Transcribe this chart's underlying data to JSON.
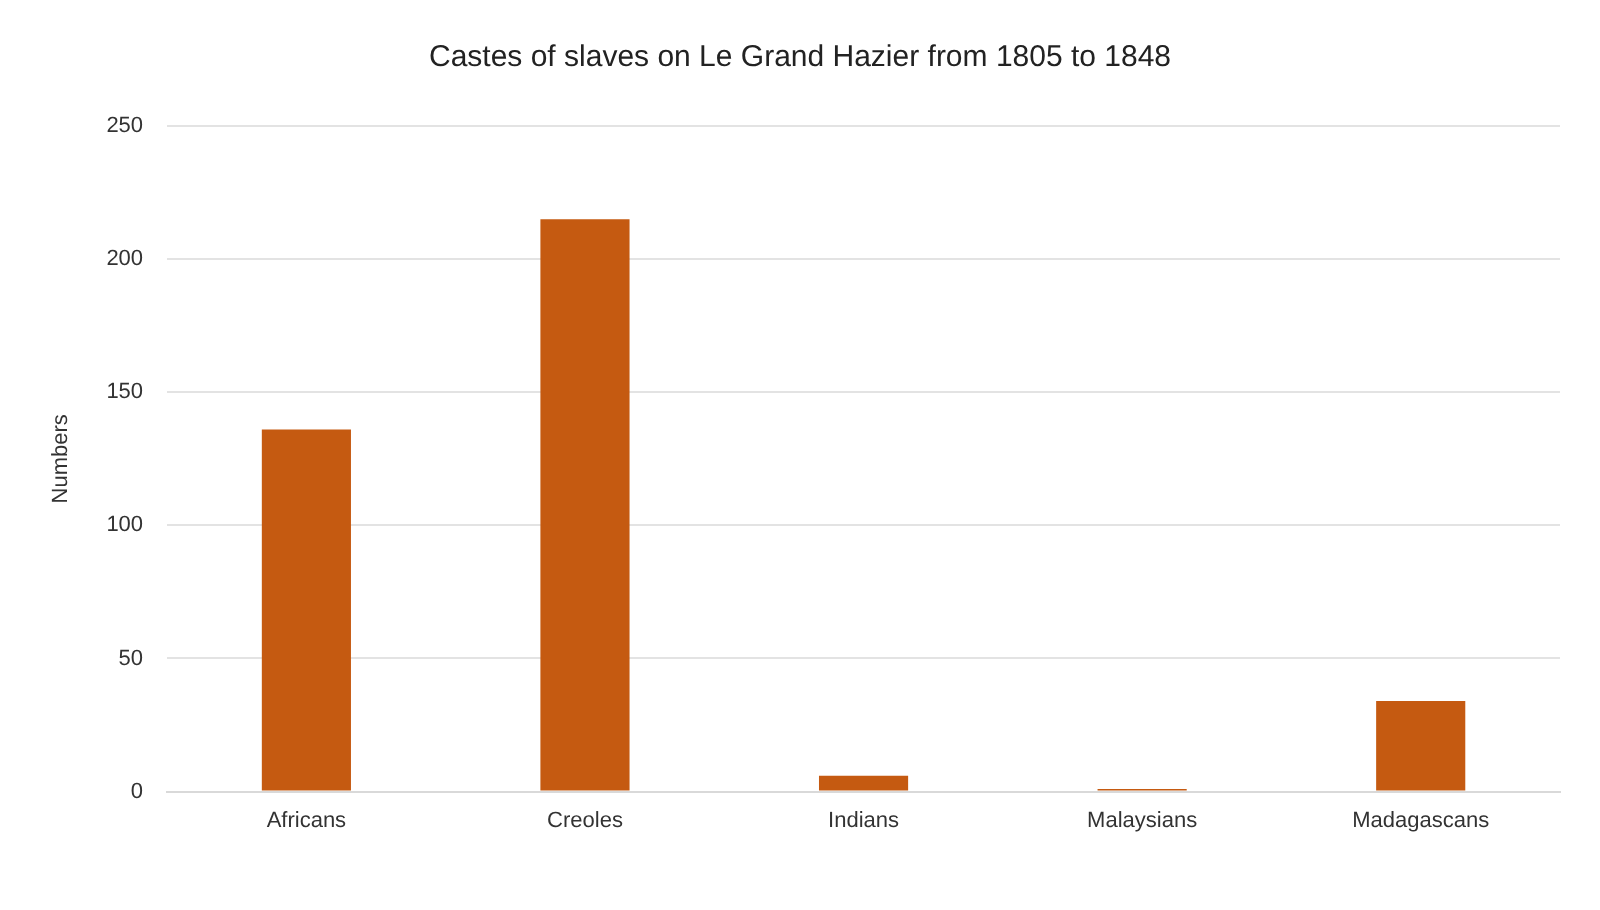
{
  "chart_data": {
    "type": "bar",
    "title": "Castes of slaves on Le Grand Hazier from 1805 to 1848",
    "ylabel": "Numbers",
    "categories": [
      "Africans",
      "Creoles",
      "Indians",
      "Malaysians",
      "Madagascans"
    ],
    "values": [
      136,
      215,
      6,
      1,
      34
    ],
    "color": "#c55a11",
    "ylim": [
      0,
      250
    ],
    "yticks": [
      0,
      50,
      100,
      150,
      200,
      250
    ],
    "grid": "y"
  }
}
